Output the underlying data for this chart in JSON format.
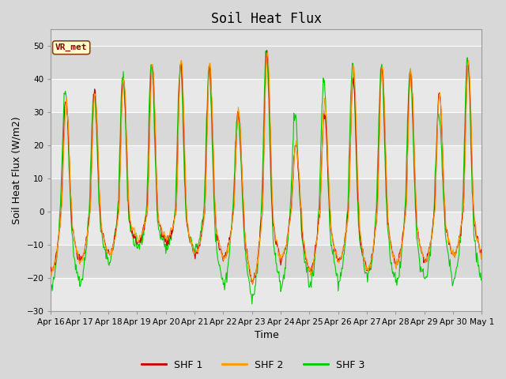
{
  "title": "Soil Heat Flux",
  "ylabel": "Soil Heat Flux (W/m2)",
  "xlabel": "Time",
  "ylim": [
    -30,
    55
  ],
  "yticks": [
    -30,
    -20,
    -10,
    0,
    10,
    20,
    30,
    40,
    50
  ],
  "xtick_labels": [
    "Apr 16",
    "Apr 17",
    "Apr 18",
    "Apr 19",
    "Apr 20",
    "Apr 21",
    "Apr 22",
    "Apr 23",
    "Apr 24",
    "Apr 25",
    "Apr 26",
    "Apr 27",
    "Apr 28",
    "Apr 29",
    "Apr 30",
    "May 1"
  ],
  "colors": {
    "SHF1": "#cc0000",
    "SHF2": "#ff9900",
    "SHF3": "#00cc00"
  },
  "legend_labels": [
    "SHF 1",
    "SHF 2",
    "SHF 3"
  ],
  "watermark": "VR_met",
  "bg_light": "#e8e8e8",
  "bg_dark": "#d8d8d8",
  "title_fontsize": 12,
  "label_fontsize": 9,
  "day_peaks": [
    34,
    36,
    40,
    45,
    45,
    44,
    30,
    48,
    20,
    30,
    40,
    44,
    43,
    36,
    45
  ],
  "day_peaks_shf2": [
    33,
    36,
    40,
    45,
    46,
    44,
    30,
    49,
    20,
    33,
    44,
    44,
    43,
    36,
    45
  ],
  "day_peaks_shf3": [
    37,
    37,
    41,
    45,
    45,
    43,
    30,
    48,
    29,
    40,
    44,
    44,
    43,
    30,
    46
  ],
  "night_vals_shf1": [
    -18,
    -15,
    -13,
    -9,
    -9,
    -13,
    -14,
    -21,
    -14,
    -18,
    -15,
    -18,
    -16,
    -15,
    -13
  ],
  "night_vals_shf2": [
    -18,
    -15,
    -13,
    -8,
    -8,
    -13,
    -14,
    -21,
    -14,
    -18,
    -15,
    -18,
    -16,
    -15,
    -13
  ],
  "night_vals_shf3": [
    -23,
    -22,
    -15,
    -11,
    -11,
    -12,
    -22,
    -26,
    -22,
    -22,
    -21,
    -20,
    -21,
    -21,
    -21
  ]
}
